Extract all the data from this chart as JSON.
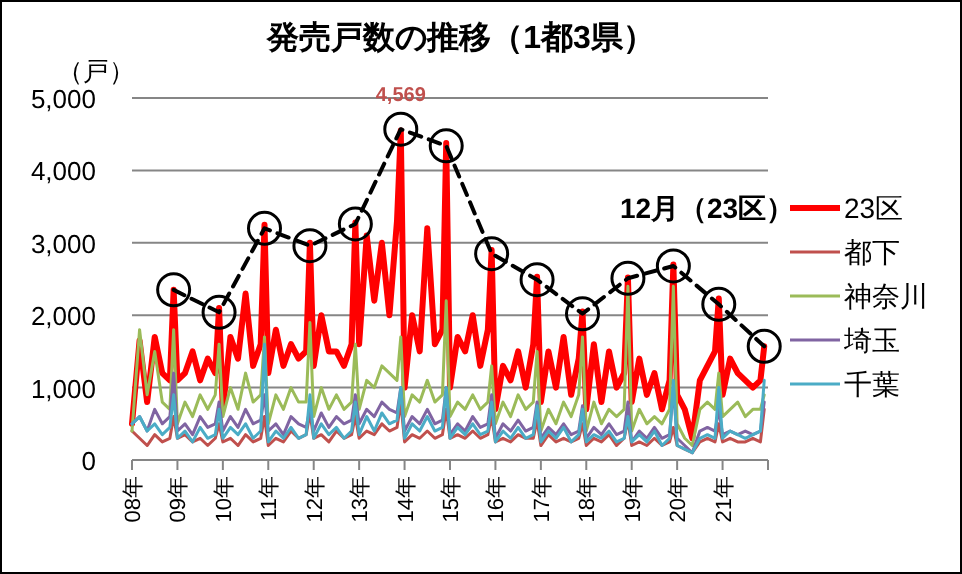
{
  "chart_data": {
    "type": "line",
    "title": "発売戸数の推移（1都3県）",
    "ylabel": "（戸）",
    "x": [
      "2008-01",
      "2008-03",
      "2008-05",
      "2008-07",
      "2008-09",
      "2008-11",
      "2008-12",
      "2009-01",
      "2009-03",
      "2009-05",
      "2009-07",
      "2009-09",
      "2009-11",
      "2009-12",
      "2010-01",
      "2010-03",
      "2010-05",
      "2010-07",
      "2010-09",
      "2010-11",
      "2010-12",
      "2011-01",
      "2011-03",
      "2011-05",
      "2011-07",
      "2011-09",
      "2011-11",
      "2011-12",
      "2012-01",
      "2012-03",
      "2012-05",
      "2012-07",
      "2012-09",
      "2012-11",
      "2012-12",
      "2013-01",
      "2013-03",
      "2013-05",
      "2013-07",
      "2013-09",
      "2013-11",
      "2013-12",
      "2014-01",
      "2014-03",
      "2014-05",
      "2014-07",
      "2014-09",
      "2014-11",
      "2014-12",
      "2015-01",
      "2015-03",
      "2015-05",
      "2015-07",
      "2015-09",
      "2015-11",
      "2015-12",
      "2016-01",
      "2016-03",
      "2016-05",
      "2016-07",
      "2016-09",
      "2016-11",
      "2016-12",
      "2017-01",
      "2017-03",
      "2017-05",
      "2017-07",
      "2017-09",
      "2017-11",
      "2017-12",
      "2018-01",
      "2018-03",
      "2018-05",
      "2018-07",
      "2018-09",
      "2018-11",
      "2018-12",
      "2019-01",
      "2019-03",
      "2019-05",
      "2019-07",
      "2019-09",
      "2019-11",
      "2019-12",
      "2020-01",
      "2020-03",
      "2020-05",
      "2020-07",
      "2020-09",
      "2020-11",
      "2020-12",
      "2021-01",
      "2021-03",
      "2021-05",
      "2021-07",
      "2021-09",
      "2021-11",
      "2021-12"
    ],
    "series": [
      {
        "name": "23区",
        "color": "#ff0000",
        "values": [
          500,
          1650,
          800,
          1700,
          1200,
          1100,
          2350,
          1100,
          1200,
          1500,
          1100,
          1400,
          1200,
          2100,
          700,
          1700,
          1400,
          2300,
          1300,
          1600,
          3250,
          1200,
          1800,
          1300,
          1600,
          1400,
          1500,
          3000,
          1300,
          2000,
          1500,
          1500,
          1300,
          1600,
          3280,
          1600,
          3100,
          2200,
          3000,
          2000,
          3300,
          4550,
          1000,
          2000,
          1500,
          3200,
          1600,
          1800,
          4380,
          1000,
          1700,
          1500,
          2000,
          1300,
          1800,
          2900,
          700,
          1300,
          1100,
          1500,
          1000,
          1600,
          2530,
          800,
          1500,
          1000,
          1700,
          900,
          1400,
          2050,
          700,
          1600,
          800,
          1500,
          1000,
          1200,
          2520,
          800,
          1400,
          900,
          1200,
          700,
          1100,
          2700,
          900,
          700,
          300,
          1100,
          1300,
          1500,
          2230,
          900,
          1400,
          1200,
          1100,
          1000,
          1100,
          1570
        ]
      },
      {
        "name": "都下",
        "color": "#c0504d",
        "values": [
          400,
          300,
          200,
          350,
          250,
          300,
          600,
          300,
          350,
          250,
          300,
          200,
          300,
          500,
          250,
          300,
          200,
          350,
          250,
          300,
          600,
          200,
          300,
          250,
          400,
          300,
          350,
          650,
          300,
          350,
          250,
          400,
          300,
          350,
          600,
          300,
          400,
          350,
          500,
          400,
          450,
          800,
          250,
          350,
          300,
          400,
          300,
          350,
          700,
          300,
          350,
          300,
          400,
          300,
          350,
          600,
          250,
          300,
          250,
          350,
          300,
          300,
          550,
          200,
          350,
          250,
          300,
          250,
          300,
          500,
          200,
          300,
          250,
          350,
          200,
          300,
          550,
          200,
          250,
          200,
          300,
          200,
          250,
          450,
          200,
          150,
          100,
          250,
          300,
          250,
          500,
          250,
          300,
          250,
          250,
          300,
          250,
          700
        ]
      },
      {
        "name": "神奈川",
        "color": "#9bbb59",
        "values": [
          400,
          1800,
          900,
          1500,
          800,
          700,
          1800,
          500,
          800,
          600,
          900,
          700,
          900,
          1600,
          600,
          1000,
          700,
          1200,
          800,
          900,
          1700,
          500,
          900,
          700,
          1000,
          800,
          800,
          1900,
          600,
          1000,
          700,
          900,
          700,
          800,
          1600,
          700,
          1100,
          1000,
          1300,
          1200,
          1100,
          1700,
          600,
          900,
          800,
          1100,
          800,
          900,
          2200,
          600,
          800,
          700,
          900,
          700,
          800,
          1300,
          500,
          800,
          600,
          900,
          700,
          800,
          1500,
          400,
          700,
          500,
          800,
          600,
          900,
          1700,
          400,
          800,
          500,
          700,
          600,
          700,
          2400,
          400,
          700,
          500,
          600,
          500,
          700,
          2400,
          500,
          300,
          200,
          700,
          800,
          700,
          1200,
          600,
          700,
          800,
          600,
          700,
          700,
          900
        ]
      },
      {
        "name": "埼玉",
        "color": "#8064a2",
        "values": [
          500,
          600,
          400,
          700,
          500,
          600,
          1200,
          400,
          500,
          350,
          600,
          450,
          500,
          800,
          400,
          600,
          450,
          700,
          500,
          550,
          900,
          400,
          500,
          350,
          600,
          500,
          450,
          700,
          400,
          650,
          450,
          600,
          500,
          550,
          900,
          500,
          700,
          600,
          800,
          700,
          650,
          1000,
          400,
          600,
          500,
          700,
          500,
          550,
          1000,
          350,
          500,
          400,
          600,
          450,
          500,
          900,
          300,
          500,
          400,
          550,
          400,
          450,
          800,
          300,
          450,
          350,
          500,
          350,
          400,
          750,
          300,
          450,
          350,
          500,
          350,
          400,
          800,
          250,
          400,
          300,
          450,
          300,
          350,
          1000,
          300,
          200,
          100,
          400,
          450,
          400,
          700,
          350,
          400,
          350,
          400,
          350,
          400,
          800
        ]
      },
      {
        "name": "千葉",
        "color": "#4bacc6",
        "values": [
          500,
          600,
          400,
          500,
          350,
          450,
          900,
          300,
          400,
          250,
          450,
          300,
          350,
          700,
          300,
          450,
          350,
          500,
          300,
          400,
          1600,
          250,
          400,
          300,
          450,
          300,
          350,
          900,
          300,
          500,
          350,
          450,
          300,
          400,
          800,
          350,
          600,
          400,
          650,
          500,
          550,
          1000,
          300,
          500,
          400,
          600,
          400,
          450,
          1000,
          300,
          450,
          350,
          500,
          350,
          400,
          800,
          250,
          400,
          300,
          450,
          300,
          350,
          750,
          250,
          400,
          300,
          450,
          250,
          350,
          700,
          250,
          350,
          300,
          400,
          250,
          300,
          600,
          250,
          350,
          250,
          400,
          200,
          300,
          1100,
          200,
          150,
          100,
          300,
          350,
          300,
          1000,
          300,
          400,
          350,
          300,
          350,
          400,
          1100
        ]
      },
      {
        "name": "12月（23区）",
        "color": "#000000",
        "type": "line",
        "line_style": "dashed",
        "marker": "circle",
        "x": [
          "2008-12",
          "2009-12",
          "2010-12",
          "2011-12",
          "2012-12",
          "2013-12",
          "2014-12",
          "2015-12",
          "2016-12",
          "2017-12",
          "2018-12",
          "2019-12",
          "2020-12",
          "2021-12"
        ],
        "values": [
          2350,
          2040,
          3200,
          2960,
          3260,
          4569,
          4340,
          2850,
          2490,
          2020,
          2510,
          2680,
          2150,
          1570
        ],
        "value_labels": [
          null,
          null,
          null,
          null,
          null,
          "4,569",
          null,
          null,
          null,
          null,
          null,
          null,
          null,
          null
        ]
      }
    ],
    "xlim": [
      "2008-01",
      "2022-01"
    ],
    "xticks": [
      {
        "value": "2008-01",
        "label": "08年"
      },
      {
        "value": "2009-01",
        "label": "09年"
      },
      {
        "value": "2010-01",
        "label": "10年"
      },
      {
        "value": "2011-01",
        "label": "11年"
      },
      {
        "value": "2012-01",
        "label": "12年"
      },
      {
        "value": "2013-01",
        "label": "13年"
      },
      {
        "value": "2014-01",
        "label": "14年"
      },
      {
        "value": "2015-01",
        "label": "15年"
      },
      {
        "value": "2016-01",
        "label": "16年"
      },
      {
        "value": "2017-01",
        "label": "17年"
      },
      {
        "value": "2018-01",
        "label": "18年"
      },
      {
        "value": "2019-01",
        "label": "19年"
      },
      {
        "value": "2020-01",
        "label": "20年"
      },
      {
        "value": "2021-01",
        "label": "21年"
      },
      {
        "value": "2022-01",
        "label": null
      }
    ],
    "ylim": [
      0,
      5000
    ],
    "yticks": [
      {
        "value": 0,
        "label": "0"
      },
      {
        "value": 1000,
        "label": "1,000"
      },
      {
        "value": 2000,
        "label": "2,000"
      },
      {
        "value": 3000,
        "label": "3,000"
      },
      {
        "value": 4000,
        "label": "4,000"
      },
      {
        "value": 5000,
        "label": "5,000"
      }
    ],
    "grid": "y",
    "legend": "right"
  }
}
